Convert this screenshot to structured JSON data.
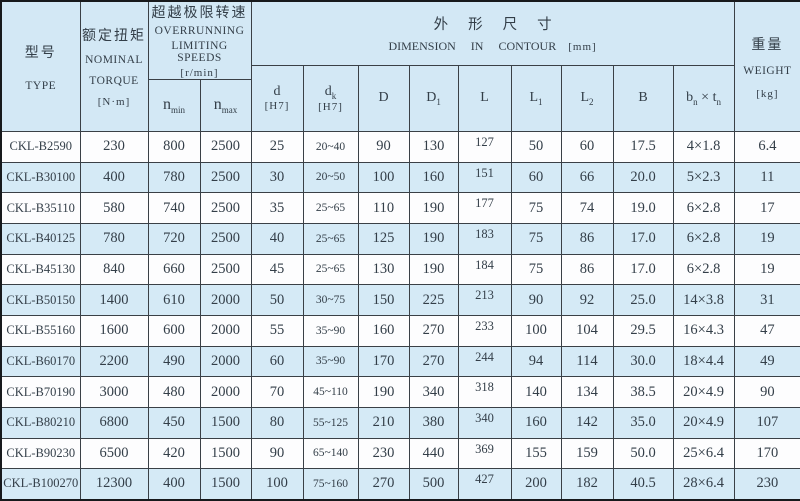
{
  "colors": {
    "header_bg": "#d3e8f5",
    "row_alt": "#d5eaf6",
    "row_plain": "#fdfdfe",
    "border": "#3a4046",
    "outer_border": "#17191c",
    "text": "#333e48"
  },
  "table": {
    "header": {
      "type": {
        "zh": "型号",
        "en": "TYPE"
      },
      "torque": {
        "zh": "额定扭矩",
        "en1": "NOMINAL",
        "en2": "TORQUE",
        "unit": "[N·m]"
      },
      "speeds": {
        "zh": "超越极限转速",
        "en1": "OVERRUNNING",
        "en2": "LIMITING SPEEDS",
        "unit": "[r/min]"
      },
      "n_min": {
        "base": "n",
        "sub": "min"
      },
      "n_max": {
        "base": "n",
        "sub": "max"
      },
      "dim": {
        "zh": "外形尺寸",
        "en": "DIMENSION IN CONTOUR",
        "unit": "[mm]",
        "cols": {
          "d": {
            "base": "d",
            "unit": "[H7]"
          },
          "dk": {
            "base": "d",
            "sub": "k",
            "unit": "[H7]"
          },
          "D": {
            "base": "D"
          },
          "D1": {
            "base": "D",
            "sub": "1"
          },
          "L": {
            "base": "L"
          },
          "L1": {
            "base": "L",
            "sub": "1"
          },
          "L2": {
            "base": "L",
            "sub": "2"
          },
          "B": {
            "base": "B"
          },
          "bntn": {
            "b1": "b",
            "s1": "n",
            "times": "×",
            "b2": "t",
            "s2": "n"
          }
        }
      },
      "weight": {
        "zh": "重量",
        "en": "WEIGHT",
        "unit": "[kg]"
      }
    },
    "rows": [
      {
        "type": "CKL-B2590",
        "torque": "230",
        "n_min": "800",
        "n_max": "2500",
        "d": "25",
        "dk": "20~40",
        "D": "90",
        "D1": "130",
        "L": "127",
        "L1": "50",
        "L2": "60",
        "B": "17.5",
        "bn_tn": "4×1.8",
        "weight": "6.4"
      },
      {
        "type": "CKL-B30100",
        "torque": "400",
        "n_min": "780",
        "n_max": "2500",
        "d": "30",
        "dk": "20~50",
        "D": "100",
        "D1": "160",
        "L": "151",
        "L1": "60",
        "L2": "66",
        "B": "20.0",
        "bn_tn": "5×2.3",
        "weight": "11"
      },
      {
        "type": "CKL-B35110",
        "torque": "580",
        "n_min": "740",
        "n_max": "2500",
        "d": "35",
        "dk": "25~65",
        "D": "110",
        "D1": "190",
        "L": "177",
        "L1": "75",
        "L2": "74",
        "B": "19.0",
        "bn_tn": "6×2.8",
        "weight": "17"
      },
      {
        "type": "CKL-B40125",
        "torque": "780",
        "n_min": "720",
        "n_max": "2500",
        "d": "40",
        "dk": "25~65",
        "D": "125",
        "D1": "190",
        "L": "183",
        "L1": "75",
        "L2": "86",
        "B": "17.0",
        "bn_tn": "6×2.8",
        "weight": "19"
      },
      {
        "type": "CKL-B45130",
        "torque": "840",
        "n_min": "660",
        "n_max": "2500",
        "d": "45",
        "dk": "25~65",
        "D": "130",
        "D1": "190",
        "L": "184",
        "L1": "75",
        "L2": "86",
        "B": "17.0",
        "bn_tn": "6×2.8",
        "weight": "19"
      },
      {
        "type": "CKL-B50150",
        "torque": "1400",
        "n_min": "610",
        "n_max": "2000",
        "d": "50",
        "dk": "30~75",
        "D": "150",
        "D1": "225",
        "L": "213",
        "L1": "90",
        "L2": "92",
        "B": "25.0",
        "bn_tn": "14×3.8",
        "weight": "31"
      },
      {
        "type": "CKL-B55160",
        "torque": "1600",
        "n_min": "600",
        "n_max": "2000",
        "d": "55",
        "dk": "35~90",
        "D": "160",
        "D1": "270",
        "L": "233",
        "L1": "100",
        "L2": "104",
        "B": "29.5",
        "bn_tn": "16×4.3",
        "weight": "47"
      },
      {
        "type": "CKL-B60170",
        "torque": "2200",
        "n_min": "490",
        "n_max": "2000",
        "d": "60",
        "dk": "35~90",
        "D": "170",
        "D1": "270",
        "L": "244",
        "L1": "94",
        "L2": "114",
        "B": "30.0",
        "bn_tn": "18×4.4",
        "weight": "49"
      },
      {
        "type": "CKL-B70190",
        "torque": "3000",
        "n_min": "480",
        "n_max": "2000",
        "d": "70",
        "dk": "45~110",
        "D": "190",
        "D1": "340",
        "L": "318",
        "L1": "140",
        "L2": "134",
        "B": "38.5",
        "bn_tn": "20×4.9",
        "weight": "90"
      },
      {
        "type": "CKL-B80210",
        "torque": "6800",
        "n_min": "450",
        "n_max": "1500",
        "d": "80",
        "dk": "55~125",
        "D": "210",
        "D1": "380",
        "L": "340",
        "L1": "160",
        "L2": "142",
        "B": "35.0",
        "bn_tn": "20×4.9",
        "weight": "107"
      },
      {
        "type": "CKL-B90230",
        "torque": "6500",
        "n_min": "420",
        "n_max": "1500",
        "d": "90",
        "dk": "65~140",
        "D": "230",
        "D1": "440",
        "L": "369",
        "L1": "155",
        "L2": "159",
        "B": "50.0",
        "bn_tn": "25×6.4",
        "weight": "170"
      },
      {
        "type": "CKL-B100270",
        "torque": "12300",
        "n_min": "400",
        "n_max": "1500",
        "d": "100",
        "dk": "75~160",
        "D": "270",
        "D1": "500",
        "L": "427",
        "L1": "200",
        "L2": "182",
        "B": "40.5",
        "bn_tn": "28×6.4",
        "weight": "230"
      }
    ]
  }
}
